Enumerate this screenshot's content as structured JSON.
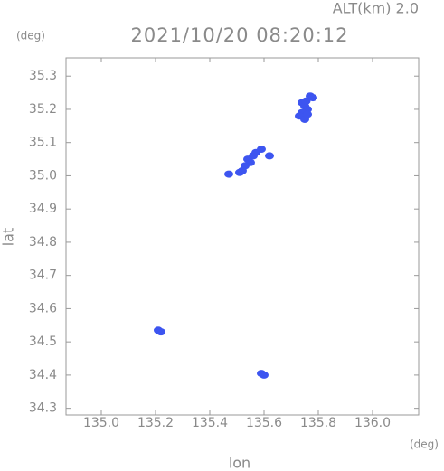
{
  "chart_data": {
    "type": "scatter",
    "annotation": "ALT(km) 2.0",
    "title": "2021/10/20 08:20:12",
    "y_unit": "(deg)",
    "x_unit": "(deg)",
    "xlabel": "lon",
    "ylabel": "lat",
    "color": "#3d55f0",
    "x": [
      135.74,
      135.75,
      135.76,
      135.74,
      135.73,
      135.75,
      135.77,
      135.78,
      135.755,
      135.76,
      135.53,
      135.55,
      135.56,
      135.54,
      135.57,
      135.59,
      135.62,
      135.52,
      135.51,
      135.47,
      135.22,
      135.21,
      135.59,
      135.6
    ],
    "values": [
      35.22,
      35.21,
      35.2,
      35.19,
      35.18,
      35.17,
      35.24,
      35.235,
      35.225,
      35.185,
      35.03,
      35.04,
      35.06,
      35.05,
      35.07,
      35.08,
      35.06,
      35.015,
      35.01,
      35.005,
      34.53,
      34.535,
      34.405,
      34.4
    ],
    "xlim": [
      134.87,
      136.17
    ],
    "ylim": [
      34.28,
      35.355
    ],
    "xticks": [
      {
        "value": 135.0,
        "label": "135.0"
      },
      135.2,
      135.4,
      135.6,
      135.8,
      {
        "value": 136.0,
        "label": "136.0"
      }
    ],
    "yticks": [
      34.3,
      34.4,
      34.5,
      34.6,
      34.7,
      34.8,
      34.9,
      {
        "value": 35.0,
        "label": "35.0"
      },
      35.1,
      35.2,
      35.3
    ]
  }
}
